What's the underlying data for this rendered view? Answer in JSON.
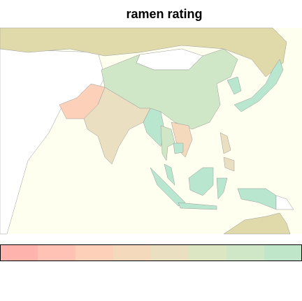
{
  "title": "ramen rating",
  "legend": {
    "colors": [
      "#ffb3ad",
      "#ffc2b4",
      "#fdd0b9",
      "#f4d9bd",
      "#eadfc0",
      "#dde6c3",
      "#cfe7c6",
      "#c0e6c9"
    ]
  },
  "land_colors": {
    "russia": "#e0daab",
    "mint": "#b8e6cf"
  }
}
